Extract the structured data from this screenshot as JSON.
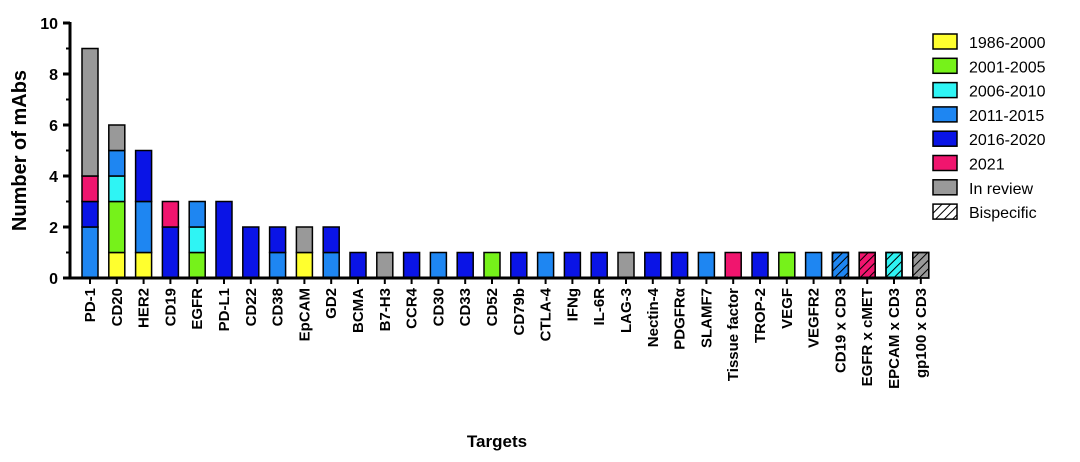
{
  "chart_data": {
    "type": "bar",
    "stacked": true,
    "xlabel": "Targets",
    "ylabel": "Number of mAbs",
    "ylim": [
      0,
      10
    ],
    "yticks": [
      "0",
      "2",
      "4",
      "6",
      "8",
      "10"
    ],
    "grid": false,
    "legend_position": "top-right",
    "categories": [
      "PD-1",
      "CD20",
      "HER2",
      "CD19",
      "EGFR",
      "PD-L1",
      "CD22",
      "CD38",
      "EpCAM",
      "GD2",
      "BCMA",
      "B7-H3",
      "CCR4",
      "CD30",
      "CD33",
      "CD52",
      "CD79b",
      "CTLA-4",
      "IFNg",
      "IL-6R",
      "LAG-3",
      "Nectin-4",
      "PDGFRα",
      "SLAMF7",
      "Tissue factor",
      "TROP-2",
      "VEGF",
      "VEGFR2",
      "CD19 x CD3",
      "EGFR x cMET",
      "EPCAM x CD3",
      "gp100 x CD3"
    ],
    "series": [
      {
        "name": "1986-2000",
        "color": "#ffff2e",
        "values": [
          0,
          1,
          1,
          0,
          0,
          0,
          0,
          0,
          1,
          0,
          0,
          0,
          0,
          0,
          0,
          0,
          0,
          0,
          0,
          0,
          0,
          0,
          0,
          0,
          0,
          0,
          0,
          0,
          0,
          0,
          0,
          0
        ]
      },
      {
        "name": "2001-2005",
        "color": "#76f21a",
        "values": [
          0,
          2,
          0,
          0,
          1,
          0,
          0,
          0,
          0,
          0,
          0,
          0,
          0,
          0,
          0,
          1,
          0,
          0,
          0,
          0,
          0,
          0,
          0,
          0,
          0,
          0,
          1,
          0,
          0,
          0,
          0,
          0
        ]
      },
      {
        "name": "2006-2010",
        "color": "#2ff4f4",
        "values": [
          0,
          1,
          0,
          0,
          1,
          0,
          0,
          0,
          0,
          0,
          0,
          0,
          0,
          0,
          0,
          0,
          0,
          0,
          0,
          0,
          0,
          0,
          0,
          0,
          0,
          0,
          0,
          0,
          0,
          0,
          1,
          0
        ]
      },
      {
        "name": "2011-2015",
        "color": "#1e86f2",
        "values": [
          2,
          1,
          2,
          0,
          1,
          0,
          0,
          1,
          0,
          1,
          0,
          0,
          0,
          1,
          0,
          0,
          0,
          1,
          0,
          0,
          0,
          0,
          0,
          1,
          0,
          0,
          0,
          1,
          1,
          0,
          0,
          0
        ]
      },
      {
        "name": "2016-2020",
        "color": "#0a14e6",
        "values": [
          1,
          0,
          2,
          2,
          0,
          3,
          2,
          1,
          0,
          1,
          1,
          0,
          1,
          0,
          1,
          0,
          1,
          0,
          1,
          1,
          0,
          1,
          1,
          0,
          0,
          1,
          0,
          0,
          0,
          0,
          0,
          0
        ]
      },
      {
        "name": "2021",
        "color": "#f0156e",
        "values": [
          1,
          0,
          0,
          1,
          0,
          0,
          0,
          0,
          0,
          0,
          0,
          0,
          0,
          0,
          0,
          0,
          0,
          0,
          0,
          0,
          0,
          0,
          0,
          0,
          1,
          0,
          0,
          0,
          0,
          1,
          0,
          0
        ]
      },
      {
        "name": "In review",
        "color": "#999999",
        "values": [
          5,
          1,
          0,
          0,
          0,
          0,
          0,
          0,
          1,
          0,
          0,
          1,
          0,
          0,
          0,
          0,
          0,
          0,
          0,
          0,
          1,
          0,
          0,
          0,
          0,
          0,
          0,
          0,
          0,
          0,
          0,
          1
        ]
      }
    ],
    "bispecific": [
      false,
      false,
      false,
      false,
      false,
      false,
      false,
      false,
      false,
      false,
      false,
      false,
      false,
      false,
      false,
      false,
      false,
      false,
      false,
      false,
      false,
      false,
      false,
      false,
      false,
      false,
      false,
      false,
      true,
      true,
      true,
      true
    ],
    "legend": [
      "1986-2000",
      "2001-2005",
      "2006-2010",
      "2011-2015",
      "2016-2020",
      "2021",
      "In review",
      "Bispecific"
    ]
  }
}
